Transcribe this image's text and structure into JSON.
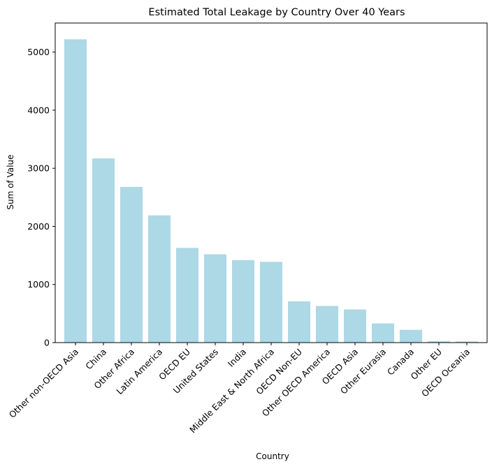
{
  "chart_data": {
    "type": "bar",
    "title": "Estimated Total Leakage by Country Over 40 Years",
    "xlabel": "Country",
    "ylabel": "Sum of Value",
    "categories": [
      "Other non-OECD Asia",
      "China",
      "Other Africa",
      "Latin America",
      "OECD EU",
      "United States",
      "India",
      "Middle East & North Africa",
      "OECD Non-EU",
      "Other OECD America",
      "OECD Asia",
      "Other Eurasia",
      "Canada",
      "Other EU",
      "OECD Oceania"
    ],
    "values": [
      5220,
      3170,
      2680,
      2190,
      1630,
      1520,
      1420,
      1390,
      710,
      630,
      570,
      330,
      220,
      25,
      20
    ],
    "ylim": [
      0,
      5500
    ],
    "yticks": [
      "0",
      "1000",
      "2000",
      "3000",
      "4000",
      "5000"
    ],
    "bar_color": "#add8e6",
    "grid": false,
    "legend": "none"
  }
}
